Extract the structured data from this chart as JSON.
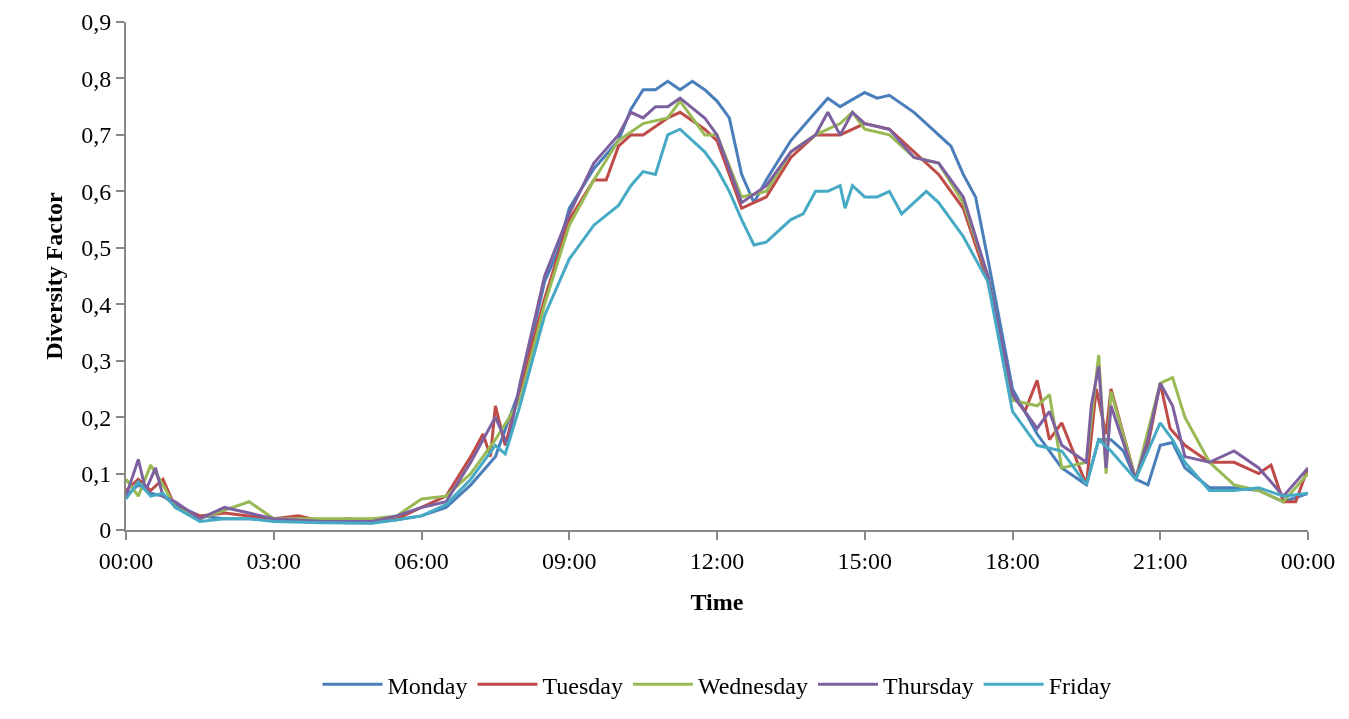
{
  "chart_data": {
    "type": "line",
    "xlabel": "Time",
    "ylabel": "Diversity Factor",
    "xlim": [
      0,
      24
    ],
    "xticks": [
      {
        "value": 0,
        "label": "00:00"
      },
      {
        "value": 3,
        "label": "03:00"
      },
      {
        "value": 6,
        "label": "06:00"
      },
      {
        "value": 9,
        "label": "09:00"
      },
      {
        "value": 12,
        "label": "12:00"
      },
      {
        "value": 15,
        "label": "15:00"
      },
      {
        "value": 18,
        "label": "18:00"
      },
      {
        "value": 21,
        "label": "21:00"
      },
      {
        "value": 24,
        "label": "00:00"
      }
    ],
    "ylim": [
      0,
      0.9
    ],
    "yticks": [
      0,
      {
        "value": 0.1,
        "label": "0,1"
      },
      {
        "value": 0.2,
        "label": "0,2"
      },
      {
        "value": 0.3,
        "label": "0,3"
      },
      {
        "value": 0.4,
        "label": "0,4"
      },
      {
        "value": 0.5,
        "label": "0,5"
      },
      {
        "value": 0.6,
        "label": "0,6"
      },
      {
        "value": 0.7,
        "label": "0,7"
      },
      {
        "value": 0.8,
        "label": "0,8"
      },
      {
        "value": 0.9,
        "label": "0,9"
      }
    ],
    "grid": false,
    "legend": "bottom",
    "marker": "none",
    "line_style": "solid",
    "series": [
      {
        "name": "Monday",
        "color": "#4a7ebb",
        "x": [
          0,
          0.25,
          0.5,
          0.75,
          1,
          1.5,
          2,
          2.5,
          3,
          3.5,
          4,
          4.5,
          5,
          5.5,
          6,
          6.5,
          7,
          7.5,
          8,
          8.5,
          8.75,
          9,
          9.5,
          10,
          10.25,
          10.5,
          10.75,
          11,
          11.25,
          11.5,
          11.75,
          12,
          12.25,
          12.5,
          12.75,
          13,
          13.5,
          14,
          14.25,
          14.5,
          15,
          15.25,
          15.5,
          16,
          16.5,
          16.75,
          17,
          17.25,
          17.5,
          18,
          18.5,
          19,
          19.5,
          19.75,
          20,
          20.25,
          20.5,
          20.75,
          21,
          21.25,
          21.5,
          22,
          22.5,
          23,
          23.5,
          24
        ],
        "values": [
          0.06,
          0.08,
          0.065,
          0.06,
          0.045,
          0.025,
          0.02,
          0.02,
          0.017,
          0.015,
          0.015,
          0.013,
          0.013,
          0.018,
          0.025,
          0.04,
          0.08,
          0.13,
          0.25,
          0.44,
          0.49,
          0.57,
          0.64,
          0.69,
          0.745,
          0.78,
          0.78,
          0.795,
          0.78,
          0.795,
          0.78,
          0.76,
          0.73,
          0.63,
          0.58,
          0.62,
          0.69,
          0.74,
          0.765,
          0.75,
          0.775,
          0.765,
          0.77,
          0.74,
          0.7,
          0.68,
          0.63,
          0.59,
          0.48,
          0.25,
          0.17,
          0.11,
          0.08,
          0.16,
          0.16,
          0.14,
          0.09,
          0.08,
          0.15,
          0.155,
          0.11,
          0.075,
          0.075,
          0.07,
          0.05,
          0.065
        ]
      },
      {
        "name": "Tuesday",
        "color": "#be4b48",
        "x": [
          0,
          0.25,
          0.5,
          0.75,
          1,
          1.5,
          2,
          2.5,
          3,
          3.5,
          4,
          4.5,
          5,
          5.5,
          6,
          6.5,
          7,
          7.25,
          7.4,
          7.5,
          7.7,
          8,
          8.5,
          9,
          9.5,
          9.75,
          10,
          10.25,
          10.5,
          11,
          11.25,
          11.75,
          12,
          12.5,
          13,
          13.5,
          14,
          14.5,
          15,
          15.5,
          16,
          16.5,
          17,
          17.5,
          18,
          18.25,
          18.5,
          18.75,
          19,
          19.5,
          19.7,
          19.9,
          20,
          20.5,
          20.75,
          21,
          21.2,
          21.5,
          22,
          22.5,
          23,
          23.25,
          23.5,
          23.75,
          24
        ],
        "values": [
          0.07,
          0.09,
          0.07,
          0.09,
          0.04,
          0.025,
          0.03,
          0.025,
          0.02,
          0.025,
          0.015,
          0.02,
          0.015,
          0.02,
          0.04,
          0.06,
          0.13,
          0.17,
          0.13,
          0.22,
          0.15,
          0.25,
          0.41,
          0.55,
          0.62,
          0.62,
          0.68,
          0.7,
          0.7,
          0.73,
          0.74,
          0.71,
          0.69,
          0.57,
          0.59,
          0.66,
          0.7,
          0.7,
          0.72,
          0.71,
          0.67,
          0.63,
          0.57,
          0.44,
          0.24,
          0.21,
          0.265,
          0.16,
          0.19,
          0.08,
          0.25,
          0.17,
          0.25,
          0.09,
          0.15,
          0.26,
          0.18,
          0.15,
          0.12,
          0.12,
          0.1,
          0.115,
          0.05,
          0.05,
          0.11
        ]
      },
      {
        "name": "Wednesday",
        "color": "#98b954",
        "x": [
          0,
          0.25,
          0.5,
          0.75,
          1,
          1.5,
          2.5,
          3,
          4,
          5,
          5.5,
          6,
          6.5,
          7,
          7.5,
          8,
          8.5,
          9,
          9.5,
          10,
          10.5,
          11,
          11.25,
          11.75,
          12,
          12.5,
          13,
          13.5,
          14,
          14.5,
          14.75,
          15,
          15.5,
          16,
          16.5,
          17,
          17.5,
          18,
          18.5,
          18.75,
          19,
          19.5,
          19.75,
          19.9,
          20,
          20.5,
          21,
          21.25,
          21.5,
          22,
          22.5,
          23,
          23.5,
          24
        ],
        "values": [
          0.09,
          0.06,
          0.115,
          0.08,
          0.04,
          0.02,
          0.05,
          0.02,
          0.02,
          0.02,
          0.025,
          0.055,
          0.06,
          0.1,
          0.16,
          0.23,
          0.4,
          0.54,
          0.62,
          0.69,
          0.72,
          0.73,
          0.76,
          0.7,
          0.7,
          0.59,
          0.6,
          0.67,
          0.7,
          0.72,
          0.74,
          0.71,
          0.7,
          0.66,
          0.65,
          0.58,
          0.45,
          0.23,
          0.22,
          0.24,
          0.11,
          0.12,
          0.31,
          0.1,
          0.245,
          0.09,
          0.26,
          0.27,
          0.2,
          0.12,
          0.08,
          0.07,
          0.05,
          0.1
        ]
      },
      {
        "name": "Thursday",
        "color": "#7d60a0",
        "x": [
          0,
          0.25,
          0.4,
          0.6,
          0.75,
          1,
          1.5,
          2,
          2.5,
          3,
          4,
          4.5,
          5,
          5.5,
          6,
          6.5,
          7,
          7.5,
          7.75,
          8,
          8.5,
          9,
          9.5,
          10,
          10.25,
          10.5,
          10.75,
          11,
          11.25,
          11.75,
          12,
          12.5,
          13,
          13.5,
          14,
          14.25,
          14.5,
          14.75,
          15,
          15.5,
          16,
          16.5,
          17,
          17.5,
          18,
          18.5,
          18.75,
          19,
          19.5,
          19.6,
          19.75,
          19.9,
          20,
          20.5,
          20.75,
          21,
          21.25,
          21.5,
          22,
          22.5,
          23,
          23.5,
          24
        ],
        "values": [
          0.06,
          0.125,
          0.07,
          0.11,
          0.06,
          0.05,
          0.02,
          0.04,
          0.03,
          0.02,
          0.015,
          0.015,
          0.015,
          0.025,
          0.04,
          0.05,
          0.12,
          0.2,
          0.15,
          0.26,
          0.45,
          0.56,
          0.65,
          0.7,
          0.74,
          0.73,
          0.75,
          0.75,
          0.765,
          0.73,
          0.7,
          0.58,
          0.61,
          0.67,
          0.7,
          0.74,
          0.7,
          0.74,
          0.72,
          0.71,
          0.66,
          0.65,
          0.59,
          0.45,
          0.24,
          0.18,
          0.21,
          0.15,
          0.12,
          0.22,
          0.29,
          0.11,
          0.22,
          0.09,
          0.16,
          0.26,
          0.22,
          0.13,
          0.12,
          0.14,
          0.11,
          0.06,
          0.11
        ]
      },
      {
        "name": "Friday",
        "color": "#46aac5",
        "x": [
          0,
          0.25,
          0.5,
          0.75,
          1,
          1.5,
          2,
          2.5,
          3,
          4,
          5,
          5.5,
          6,
          6.5,
          7,
          7.5,
          7.7,
          8,
          8.5,
          9,
          9.5,
          10,
          10.25,
          10.5,
          10.75,
          11,
          11.25,
          11.75,
          12,
          12.25,
          12.5,
          12.75,
          13,
          13.5,
          13.75,
          14,
          14.25,
          14.5,
          14.6,
          14.75,
          15,
          15.25,
          15.5,
          15.75,
          16,
          16.25,
          16.5,
          17,
          17.5,
          18,
          18.5,
          19,
          19.25,
          19.5,
          19.75,
          20,
          20.5,
          21,
          21.25,
          21.5,
          22,
          22.5,
          23,
          23.5,
          24
        ],
        "values": [
          0.055,
          0.085,
          0.06,
          0.065,
          0.04,
          0.015,
          0.02,
          0.02,
          0.015,
          0.013,
          0.012,
          0.018,
          0.025,
          0.045,
          0.09,
          0.15,
          0.135,
          0.22,
          0.38,
          0.48,
          0.54,
          0.575,
          0.61,
          0.635,
          0.63,
          0.7,
          0.71,
          0.67,
          0.64,
          0.6,
          0.55,
          0.505,
          0.51,
          0.55,
          0.56,
          0.6,
          0.6,
          0.61,
          0.57,
          0.61,
          0.59,
          0.59,
          0.6,
          0.56,
          0.58,
          0.6,
          0.58,
          0.52,
          0.44,
          0.21,
          0.15,
          0.14,
          0.11,
          0.08,
          0.16,
          0.14,
          0.09,
          0.19,
          0.16,
          0.12,
          0.07,
          0.07,
          0.075,
          0.06,
          0.065
        ]
      }
    ]
  }
}
